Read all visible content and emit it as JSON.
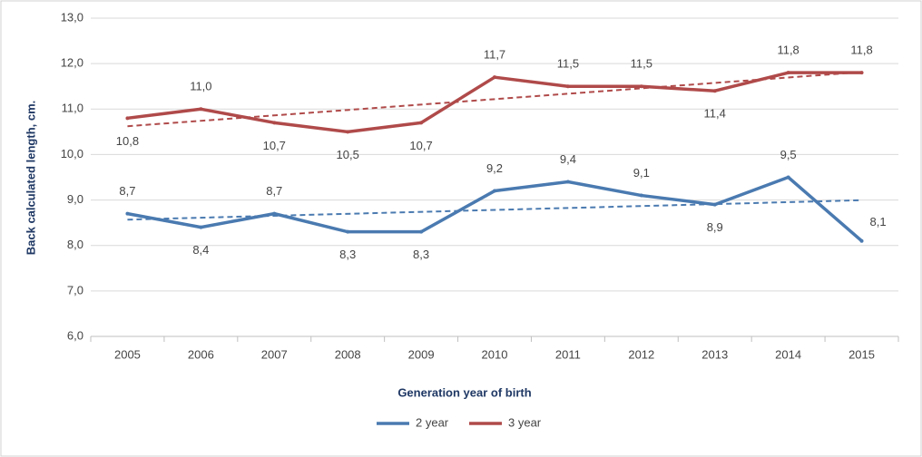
{
  "chart_data": {
    "type": "line",
    "x_label": "Generation year of birth",
    "y_label": "Back calculated length, cm.",
    "categories": [
      "2005",
      "2006",
      "2007",
      "2008",
      "2009",
      "2010",
      "2011",
      "2012",
      "2013",
      "2014",
      "2015"
    ],
    "series": [
      {
        "name": "2 year",
        "color": "#4a7ab0",
        "values": [
          8.7,
          8.4,
          8.7,
          8.3,
          8.3,
          9.2,
          9.4,
          9.1,
          8.9,
          9.5,
          8.1
        ],
        "value_labels": [
          "8,7",
          "8,4",
          "8,7",
          "8,3",
          "8,3",
          "9,2",
          "9,4",
          "9,1",
          "8,9",
          "9,5",
          "8,1"
        ]
      },
      {
        "name": "3 year",
        "color": "#b04a4a",
        "values": [
          10.8,
          11.0,
          10.7,
          10.5,
          10.7,
          11.7,
          11.5,
          11.5,
          11.4,
          11.8,
          11.8
        ],
        "value_labels": [
          "10,8",
          "11,0",
          "10,7",
          "10,5",
          "10,7",
          "11,7",
          "11,5",
          "11,5",
          "11,4",
          "11,8",
          "11,8"
        ]
      }
    ],
    "ylim": [
      6,
      13
    ],
    "yticks": [
      {
        "value": 6,
        "label": "6,0"
      },
      {
        "value": 7,
        "label": "7,0"
      },
      {
        "value": 8,
        "label": "8,0"
      },
      {
        "value": 9,
        "label": "9,0"
      },
      {
        "value": 10,
        "label": "10,0"
      },
      {
        "value": 11,
        "label": "11,0"
      },
      {
        "value": 12,
        "label": "12,0"
      },
      {
        "value": 13,
        "label": "13,0"
      }
    ],
    "grid": true,
    "trendline": true,
    "legend": "bottom"
  }
}
